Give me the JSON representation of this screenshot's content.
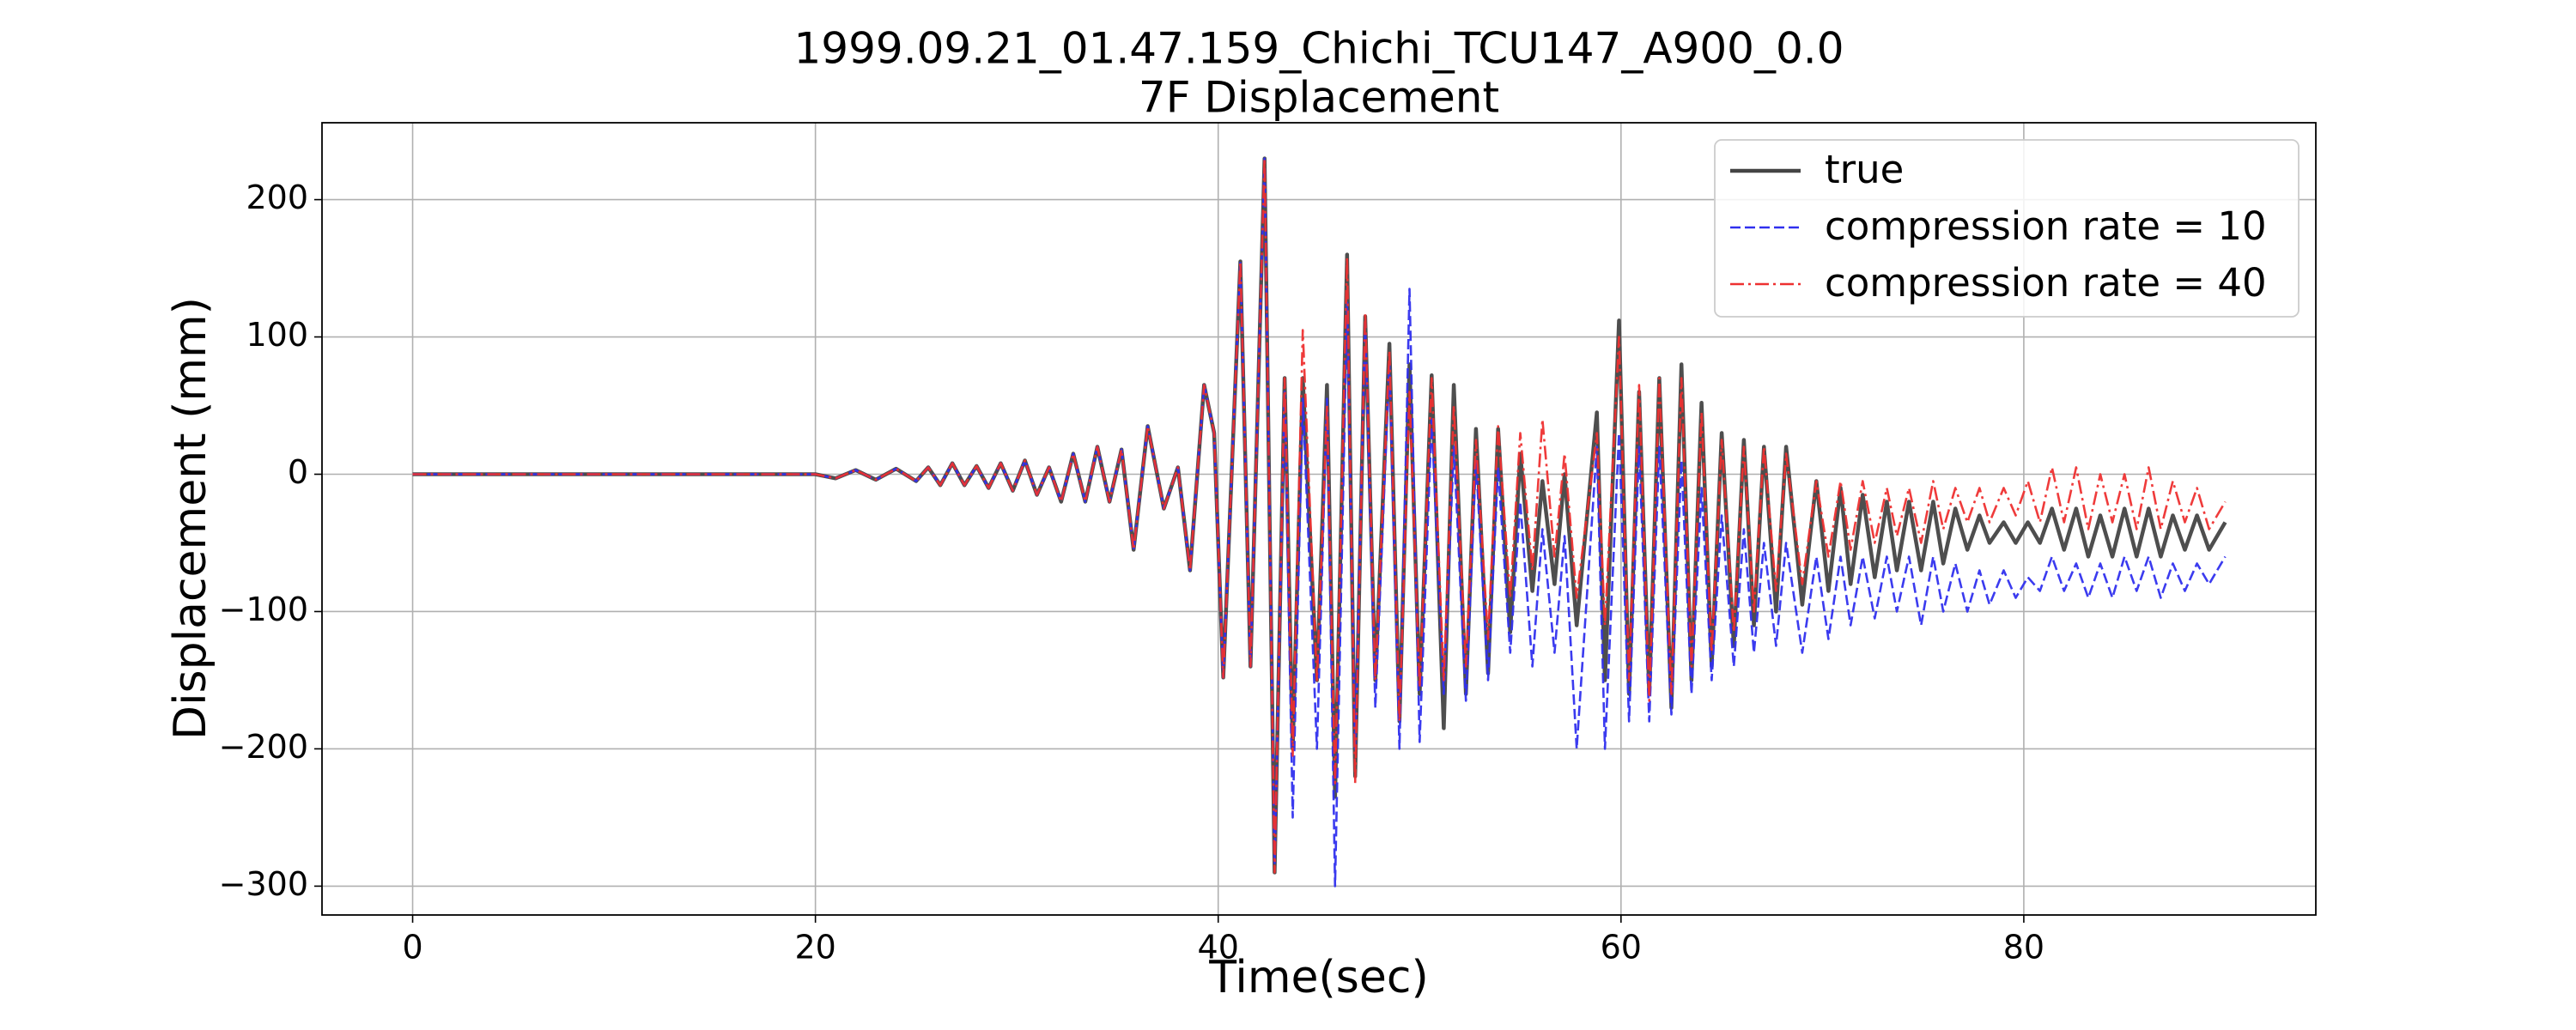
{
  "chart_data": {
    "type": "line",
    "title": "1999.09.21_01.47.159_Chichi_TCU147_A900_0.0",
    "subtitle": "7F Displacement",
    "x_label": "Time(sec)",
    "y_label": "Displacement (mm)",
    "xlim": [
      -4.5,
      94.5
    ],
    "ylim": [
      -321,
      256
    ],
    "xticks": [
      0,
      20,
      40,
      60,
      80
    ],
    "yticks": [
      {
        "value": -300,
        "label": "−300"
      },
      {
        "value": -200,
        "label": "−200"
      },
      {
        "value": -100,
        "label": "−100"
      },
      0,
      100,
      200
    ],
    "grid": true,
    "legend": "upper right",
    "x": [
      0,
      10,
      20,
      21,
      22,
      23,
      24,
      25,
      25.6,
      26.2,
      26.8,
      27.4,
      28,
      28.6,
      29.2,
      29.8,
      30.4,
      31,
      31.6,
      32.2,
      32.8,
      33.4,
      34,
      34.6,
      35.2,
      35.8,
      36.5,
      37.3,
      38,
      38.6,
      39.3,
      39.8,
      40.25,
      41.1,
      41.6,
      42.3,
      42.8,
      43.3,
      43.7,
      44.2,
      44.9,
      45.4,
      45.8,
      46.4,
      46.8,
      47.3,
      47.8,
      48.5,
      49,
      49.5,
      50,
      50.6,
      51.2,
      51.7,
      52.3,
      52.8,
      53.4,
      53.9,
      54.5,
      55,
      55.6,
      56.1,
      56.7,
      57.2,
      57.8,
      58.8,
      59.2,
      59.9,
      60.4,
      60.9,
      61.4,
      61.9,
      62.5,
      63,
      63.5,
      64,
      64.5,
      65,
      65.6,
      66.1,
      66.6,
      67.1,
      67.7,
      68.2,
      69,
      69.7,
      70.3,
      70.9,
      71.4,
      72,
      72.6,
      73.2,
      73.7,
      74.3,
      74.9,
      75.5,
      76,
      76.6,
      77.2,
      77.8,
      78.3,
      79,
      79.6,
      80.2,
      80.8,
      81.4,
      82,
      82.6,
      83.2,
      83.8,
      84.4,
      85,
      85.6,
      86.2,
      86.8,
      87.4,
      88,
      88.6,
      89.2,
      90
    ],
    "series": [
      {
        "name": "true",
        "color": "#444444",
        "dash": "solid",
        "values": [
          0,
          0,
          0,
          -3,
          3,
          -4,
          4,
          -5,
          5,
          -8,
          8,
          -8,
          6,
          -10,
          8,
          -12,
          10,
          -15,
          5,
          -20,
          15,
          -20,
          20,
          -20,
          18,
          -55,
          35,
          -25,
          5,
          -70,
          65,
          30,
          -148,
          155,
          -140,
          230,
          -290,
          70,
          -200,
          70,
          -150,
          65,
          -235,
          160,
          -220,
          115,
          -150,
          95,
          -180,
          80,
          -160,
          72,
          -185,
          65,
          -160,
          33,
          -145,
          33,
          -115,
          15,
          -85,
          -5,
          -80,
          0,
          -110,
          45,
          -150,
          112,
          -160,
          60,
          -160,
          70,
          -170,
          80,
          -150,
          52,
          -140,
          30,
          -125,
          25,
          -110,
          20,
          -100,
          20,
          -95,
          -5,
          -85,
          -10,
          -80,
          -15,
          -75,
          -20,
          -70,
          -20,
          -70,
          -20,
          -65,
          -25,
          -55,
          -30,
          -50,
          -35,
          -50,
          -35,
          -50,
          -25,
          -55,
          -25,
          -60,
          -30,
          -60,
          -25,
          -60,
          -25,
          -60,
          -30,
          -55,
          -30,
          -55,
          -35
        ]
      },
      {
        "name": "compression rate = 10",
        "color": "#3030ee",
        "dash": "dashed",
        "values": [
          0,
          0,
          0,
          -3,
          3,
          -4,
          4,
          -5,
          5,
          -8,
          8,
          -8,
          6,
          -10,
          8,
          -12,
          10,
          -15,
          5,
          -20,
          15,
          -20,
          20,
          -20,
          18,
          -55,
          35,
          -25,
          5,
          -70,
          65,
          30,
          -148,
          155,
          -140,
          230,
          -285,
          60,
          -250,
          55,
          -200,
          55,
          -300,
          125,
          -200,
          110,
          -170,
          80,
          -200,
          135,
          -195,
          40,
          -160,
          20,
          -165,
          10,
          -150,
          5,
          -130,
          -20,
          -140,
          -40,
          -130,
          -45,
          -200,
          20,
          -200,
          30,
          -180,
          20,
          -180,
          20,
          -175,
          10,
          -160,
          -10,
          -150,
          -30,
          -140,
          -40,
          -130,
          -50,
          -125,
          -50,
          -130,
          -60,
          -120,
          -60,
          -110,
          -60,
          -105,
          -60,
          -100,
          -60,
          -110,
          -60,
          -100,
          -65,
          -100,
          -70,
          -95,
          -70,
          -90,
          -75,
          -85,
          -60,
          -85,
          -65,
          -90,
          -65,
          -90,
          -60,
          -85,
          -60,
          -90,
          -65,
          -85,
          -65,
          -80,
          -60
        ]
      },
      {
        "name": "compression rate = 40",
        "color": "#ee3030",
        "dash": "dashdot",
        "values": [
          0,
          0,
          0,
          -3,
          3,
          -4,
          4,
          -5,
          5,
          -8,
          8,
          -8,
          6,
          -10,
          8,
          -12,
          10,
          -15,
          5,
          -20,
          15,
          -20,
          20,
          -20,
          18,
          -55,
          35,
          -25,
          5,
          -70,
          65,
          30,
          -148,
          155,
          -140,
          230,
          -290,
          70,
          -205,
          105,
          -150,
          50,
          -225,
          158,
          -225,
          118,
          -150,
          90,
          -180,
          60,
          -155,
          70,
          -150,
          50,
          -140,
          25,
          -120,
          35,
          -90,
          30,
          -70,
          40,
          -60,
          15,
          -90,
          30,
          -110,
          100,
          -150,
          65,
          -165,
          70,
          -160,
          70,
          -140,
          45,
          -130,
          25,
          -115,
          20,
          -100,
          20,
          -85,
          15,
          -80,
          -5,
          -60,
          -5,
          -55,
          -5,
          -50,
          -10,
          -45,
          -10,
          -50,
          -5,
          -40,
          -10,
          -35,
          -10,
          -35,
          -10,
          -30,
          -5,
          -35,
          5,
          -35,
          5,
          -40,
          0,
          -35,
          0,
          -40,
          5,
          -40,
          -5,
          -35,
          -10,
          -40,
          -20
        ]
      }
    ]
  }
}
